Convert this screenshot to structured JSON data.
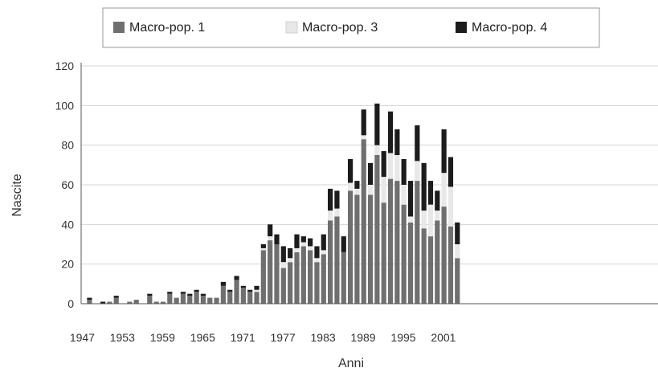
{
  "chart_data": {
    "type": "bar",
    "stacked": true,
    "xlabel": "Anni",
    "ylabel": "Nascite",
    "ylim": [
      0,
      120
    ],
    "y_ticks": [
      0,
      20,
      40,
      60,
      80,
      100,
      120
    ],
    "x_tick_labels": [
      "1947",
      "1953",
      "1959",
      "1965",
      "1971",
      "1977",
      "1983",
      "1989",
      "1995",
      "2001"
    ],
    "legend_position": "top",
    "grid": true,
    "categories": [
      "1947",
      "1948",
      "1949",
      "1950",
      "1951",
      "1952",
      "1953",
      "1954",
      "1955",
      "1956",
      "1957",
      "1958",
      "1959",
      "1960",
      "1961",
      "1962",
      "1963",
      "1964",
      "1965",
      "1966",
      "1967",
      "1968",
      "1969",
      "1970",
      "1971",
      "1972",
      "1973",
      "1974",
      "1975",
      "1976",
      "1977",
      "1978",
      "1979",
      "1980",
      "1981",
      "1982",
      "1983",
      "1984",
      "1985",
      "1986",
      "1987",
      "1988",
      "1989",
      "1990",
      "1991",
      "1992",
      "1993",
      "1994",
      "1995",
      "1996",
      "1997",
      "1998",
      "1999",
      "2000",
      "2001",
      "2002",
      "2003",
      "2004"
    ],
    "series": [
      {
        "name": "Macro-pop. 1",
        "color": "#6f6f6f",
        "values": [
          2,
          0,
          0,
          1,
          3,
          0,
          1,
          2,
          0,
          4,
          1,
          1,
          5,
          3,
          5,
          4,
          6,
          4,
          3,
          3,
          9,
          6,
          12,
          8,
          6,
          6,
          27,
          32,
          30,
          18,
          21,
          26,
          29,
          27,
          21,
          25,
          42,
          44,
          26,
          57,
          55,
          83,
          55,
          75,
          51,
          63,
          62,
          50,
          41,
          62,
          38,
          34,
          42,
          49,
          39,
          23,
          0,
          0
        ]
      },
      {
        "name": "Macro-pop. 3",
        "color": "#e8e8e8",
        "values": [
          0,
          0,
          0,
          0,
          0,
          0,
          0,
          0,
          0,
          0,
          0,
          0,
          0,
          0,
          0,
          0,
          0,
          0,
          0,
          0,
          0,
          0,
          0,
          0,
          0,
          1,
          1,
          2,
          0,
          3,
          2,
          2,
          2,
          2,
          2,
          2,
          5,
          4,
          0,
          4,
          3,
          2,
          5,
          5,
          13,
          13,
          13,
          10,
          3,
          10,
          9,
          16,
          5,
          17,
          20,
          7,
          0,
          0
        ]
      },
      {
        "name": "Macro-pop. 4",
        "color": "#1c1c1c",
        "values": [
          1,
          0,
          1,
          0,
          1,
          0,
          0,
          0,
          0,
          1,
          0,
          0,
          1,
          0,
          1,
          1,
          1,
          1,
          0,
          0,
          2,
          1,
          2,
          1,
          1,
          2,
          2,
          6,
          5,
          8,
          5,
          7,
          3,
          4,
          6,
          8,
          11,
          9,
          8,
          12,
          4,
          13,
          11,
          21,
          13,
          21,
          13,
          13,
          18,
          18,
          24,
          12,
          10,
          22,
          15,
          11,
          0,
          0
        ]
      }
    ]
  }
}
